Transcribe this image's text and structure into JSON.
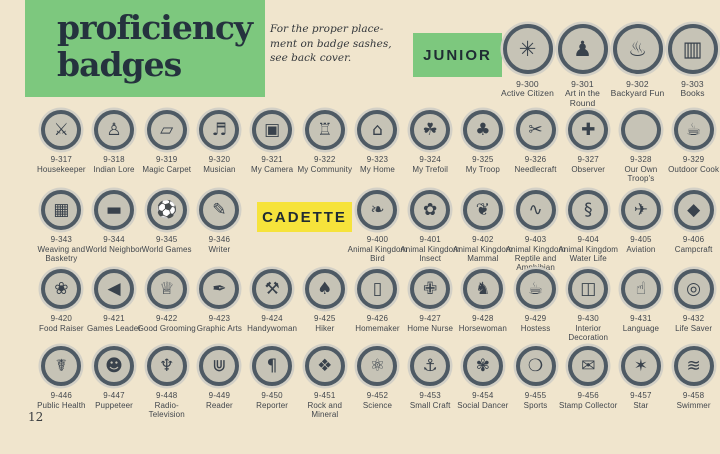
{
  "colors": {
    "bg": "#f0e5cd",
    "green": "#7dc87e",
    "yellow": "#f6e33b",
    "ink": "#25323e",
    "ring": "#4e5a64",
    "fill": "#c6c3b6",
    "halo": "#d3d0c6",
    "glyph": "#39424c",
    "label": "#42474d"
  },
  "header": {
    "title_line1": "proficiency",
    "title_line2": "badges",
    "note_line1": "For the proper place-",
    "note_line2": "ment on badge sashes,",
    "note_line3": "see back cover.",
    "junior_label": "JUNIOR",
    "cadette_label": "CADETTE"
  },
  "page_number": "12",
  "badges": {
    "junior_top": [
      {
        "num": "9-300",
        "name": "Active Citizen",
        "icon": "✳",
        "icon_name": "star-wheel-icon"
      },
      {
        "num": "9-301",
        "name": "Art in the Round",
        "icon": "♟",
        "icon_name": "statue-icon"
      },
      {
        "num": "9-302",
        "name": "Backyard Fun",
        "icon": "♨",
        "icon_name": "barbecue-grill-icon"
      },
      {
        "num": "9-303",
        "name": "Books",
        "icon": "▥",
        "icon_name": "books-icon"
      }
    ],
    "junior_row": [
      {
        "num": "9-317",
        "name": "Housekeeper",
        "icon": "⚔",
        "icon_name": "crossed-keys-icon"
      },
      {
        "num": "9-318",
        "name": "Indian Lore",
        "icon": "♙",
        "icon_name": "indian-figure-icon"
      },
      {
        "num": "9-319",
        "name": "Magic Carpet",
        "icon": "▱",
        "icon_name": "flying-carpet-icon"
      },
      {
        "num": "9-320",
        "name": "Musician",
        "icon": "♬",
        "icon_name": "treble-clef-icon"
      },
      {
        "num": "9-321",
        "name": "My Camera",
        "icon": "▣",
        "icon_name": "camera-icon"
      },
      {
        "num": "9-322",
        "name": "My Community",
        "icon": "♖",
        "icon_name": "capitol-building-icon"
      },
      {
        "num": "9-323",
        "name": "My Home",
        "icon": "⌂",
        "icon_name": "house-icon"
      },
      {
        "num": "9-324",
        "name": "My Trefoil",
        "icon": "☘",
        "icon_name": "trefoil-outline-icon"
      },
      {
        "num": "9-325",
        "name": "My Troop",
        "icon": "♣",
        "icon_name": "trefoil-icon"
      },
      {
        "num": "9-326",
        "name": "Needlecraft",
        "icon": "✂",
        "icon_name": "pincushion-icon"
      },
      {
        "num": "9-327",
        "name": "Observer",
        "icon": "✚",
        "icon_name": "cross-compass-icon"
      },
      {
        "num": "9-328",
        "name": "Our Own Troop's",
        "icon": "",
        "icon_name": "blank-badge"
      },
      {
        "num": "9-329",
        "name": "Outdoor Cook",
        "icon": "☕",
        "icon_name": "cookpot-campfire-icon"
      }
    ],
    "cadette_before": [
      {
        "num": "9-343",
        "name": "Weaving and Basketry",
        "icon": "▦",
        "icon_name": "basket-icon"
      },
      {
        "num": "9-344",
        "name": "World Neighbor",
        "icon": "▬",
        "icon_name": "building-mountains-icon"
      },
      {
        "num": "9-345",
        "name": "World Games",
        "icon": "⚽",
        "icon_name": "ball-players-icon"
      },
      {
        "num": "9-346",
        "name": "Writer",
        "icon": "✎",
        "icon_name": "scroll-icon"
      }
    ],
    "cadette_after": [
      {
        "num": "9-400",
        "name": "Animal Kingdom Bird",
        "icon": "❧",
        "icon_name": "bird-icon"
      },
      {
        "num": "9-401",
        "name": "Animal Kingdom Insect",
        "icon": "✿",
        "icon_name": "plant-insect-icon"
      },
      {
        "num": "9-402",
        "name": "Animal Kingdom Mammal",
        "icon": "❦",
        "icon_name": "squirrel-icon"
      },
      {
        "num": "9-403",
        "name": "Animal Kingdom Reptile and Amphibian",
        "icon": "∿",
        "icon_name": "turtle-icon"
      },
      {
        "num": "9-404",
        "name": "Animal Kingdom Water Life",
        "icon": "§",
        "icon_name": "seashell-icon"
      },
      {
        "num": "9-405",
        "name": "Aviation",
        "icon": "✈",
        "icon_name": "airplane-icon"
      },
      {
        "num": "9-406",
        "name": "Campcraft",
        "icon": "◆",
        "icon_name": "pack-basket-icon"
      }
    ],
    "cadette_row2": [
      {
        "num": "9-420",
        "name": "Food Raiser",
        "icon": "❀",
        "icon_name": "garden-tools-icon"
      },
      {
        "num": "9-421",
        "name": "Games Leader",
        "icon": "◀",
        "icon_name": "megaphone-icon"
      },
      {
        "num": "9-422",
        "name": "Good Grooming",
        "icon": "♕",
        "icon_name": "pumpkin-slipper-icon"
      },
      {
        "num": "9-423",
        "name": "Graphic Arts",
        "icon": "✒",
        "icon_name": "ink-roller-icon"
      },
      {
        "num": "9-424",
        "name": "Handywoman",
        "icon": "⚒",
        "icon_name": "hammer-screwdriver-icon"
      },
      {
        "num": "9-425",
        "name": "Hiker",
        "icon": "♠",
        "icon_name": "pine-tree-trail-icon"
      },
      {
        "num": "9-426",
        "name": "Homemaker",
        "icon": "▯",
        "icon_name": "doorway-icon"
      },
      {
        "num": "9-427",
        "name": "Home Nurse",
        "icon": "✙",
        "icon_name": "bed-care-icon"
      },
      {
        "num": "9-428",
        "name": "Horsewoman",
        "icon": "♞",
        "icon_name": "riding-boot-icon"
      },
      {
        "num": "9-429",
        "name": "Hostess",
        "icon": "☕",
        "icon_name": "teapot-icon"
      },
      {
        "num": "9-430",
        "name": "Interior Decoration",
        "icon": "◫",
        "icon_name": "paintbrush-can-icon"
      },
      {
        "num": "9-431",
        "name": "Language",
        "icon": "☝",
        "icon_name": "sign-language-hand-icon"
      },
      {
        "num": "9-432",
        "name": "Life Saver",
        "icon": "◎",
        "icon_name": "life-ring-icon"
      }
    ],
    "cadette_row3": [
      {
        "num": "9-446",
        "name": "Public Health",
        "icon": "☤",
        "icon_name": "caduceus-icon"
      },
      {
        "num": "9-447",
        "name": "Puppeteer",
        "icon": "☻",
        "icon_name": "puppet-head-icon"
      },
      {
        "num": "9-448",
        "name": "Radio-Television",
        "icon": "♆",
        "icon_name": "broadcast-tower-icon"
      },
      {
        "num": "9-449",
        "name": "Reader",
        "icon": "⋓",
        "icon_name": "open-book-icon"
      },
      {
        "num": "9-450",
        "name": "Reporter",
        "icon": "¶",
        "icon_name": "pilcrow-icon"
      },
      {
        "num": "9-451",
        "name": "Rock and Mineral",
        "icon": "❖",
        "icon_name": "rocks-icon"
      },
      {
        "num": "9-452",
        "name": "Science",
        "icon": "⚛",
        "icon_name": "atom-icon"
      },
      {
        "num": "9-453",
        "name": "Small Craft",
        "icon": "⚓",
        "icon_name": "anchor-icon"
      },
      {
        "num": "9-454",
        "name": "Social Dancer",
        "icon": "✾",
        "icon_name": "dancers-icon"
      },
      {
        "num": "9-455",
        "name": "Sports",
        "icon": "❍",
        "icon_name": "sports-equipment-icon"
      },
      {
        "num": "9-456",
        "name": "Stamp Collector",
        "icon": "✉",
        "icon_name": "postage-stamp-icon"
      },
      {
        "num": "9-457",
        "name": "Star",
        "icon": "✶",
        "icon_name": "stars-icon"
      },
      {
        "num": "9-458",
        "name": "Swimmer",
        "icon": "≋",
        "icon_name": "swimmer-wave-icon"
      }
    ]
  }
}
